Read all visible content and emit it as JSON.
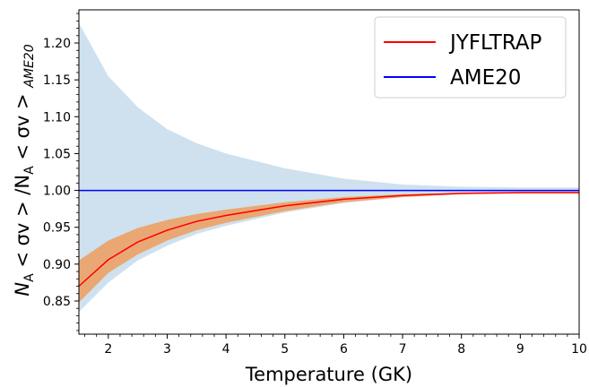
{
  "chart_data": {
    "type": "line",
    "xlabel": "Temperature (GK)",
    "ylabel_parts": {
      "main": "N",
      "sub1": "A",
      "mid": " < σv > /N",
      "sub2": "A",
      "end": " < σv > ",
      "sub3": "AME20"
    },
    "xlim": [
      1.5,
      10
    ],
    "ylim": [
      0.805,
      1.245
    ],
    "x_ticks": [
      2,
      3,
      4,
      5,
      6,
      7,
      8,
      9,
      10
    ],
    "y_ticks": [
      0.85,
      0.9,
      0.95,
      1.0,
      1.05,
      1.1,
      1.15,
      1.2
    ],
    "x_tick_labels": [
      "2",
      "3",
      "4",
      "5",
      "6",
      "7",
      "8",
      "9",
      "10"
    ],
    "y_tick_labels": [
      "0.85",
      "0.90",
      "0.95",
      "1.00",
      "1.05",
      "1.10",
      "1.15",
      "1.20"
    ],
    "x": [
      1.5,
      2.0,
      2.5,
      3.0,
      3.5,
      4.0,
      5.0,
      6.0,
      7.0,
      8.0,
      9.0,
      10.0
    ],
    "series": [
      {
        "name": "JYFLTRAP",
        "color": "#ff0000",
        "values": [
          0.87,
          0.906,
          0.93,
          0.946,
          0.958,
          0.966,
          0.979,
          0.988,
          0.993,
          0.996,
          0.997,
          0.997
        ],
        "band_lower": [
          0.848,
          0.888,
          0.913,
          0.932,
          0.946,
          0.956,
          0.972,
          0.984,
          0.991,
          0.995,
          0.996,
          0.996
        ],
        "band_upper": [
          0.905,
          0.932,
          0.949,
          0.96,
          0.968,
          0.974,
          0.984,
          0.991,
          0.995,
          0.997,
          0.998,
          0.998
        ],
        "band_color": "#e9a873"
      },
      {
        "name": "AME20",
        "color": "#0000ff",
        "values": [
          1.0,
          1.0,
          1.0,
          1.0,
          1.0,
          1.0,
          1.0,
          1.0,
          1.0,
          1.0,
          1.0,
          1.0
        ],
        "band_lower": [
          0.835,
          0.875,
          0.905,
          0.925,
          0.941,
          0.952,
          0.97,
          0.983,
          0.991,
          0.995,
          0.996,
          0.996
        ],
        "band_upper": [
          1.227,
          1.155,
          1.113,
          1.083,
          1.064,
          1.05,
          1.03,
          1.016,
          1.008,
          1.005,
          1.004,
          1.004
        ],
        "band_color": "#cfe1ef"
      }
    ],
    "legend": [
      "JYFLTRAP",
      "AME20"
    ],
    "legend_position": "upper-right",
    "grid": false
  }
}
